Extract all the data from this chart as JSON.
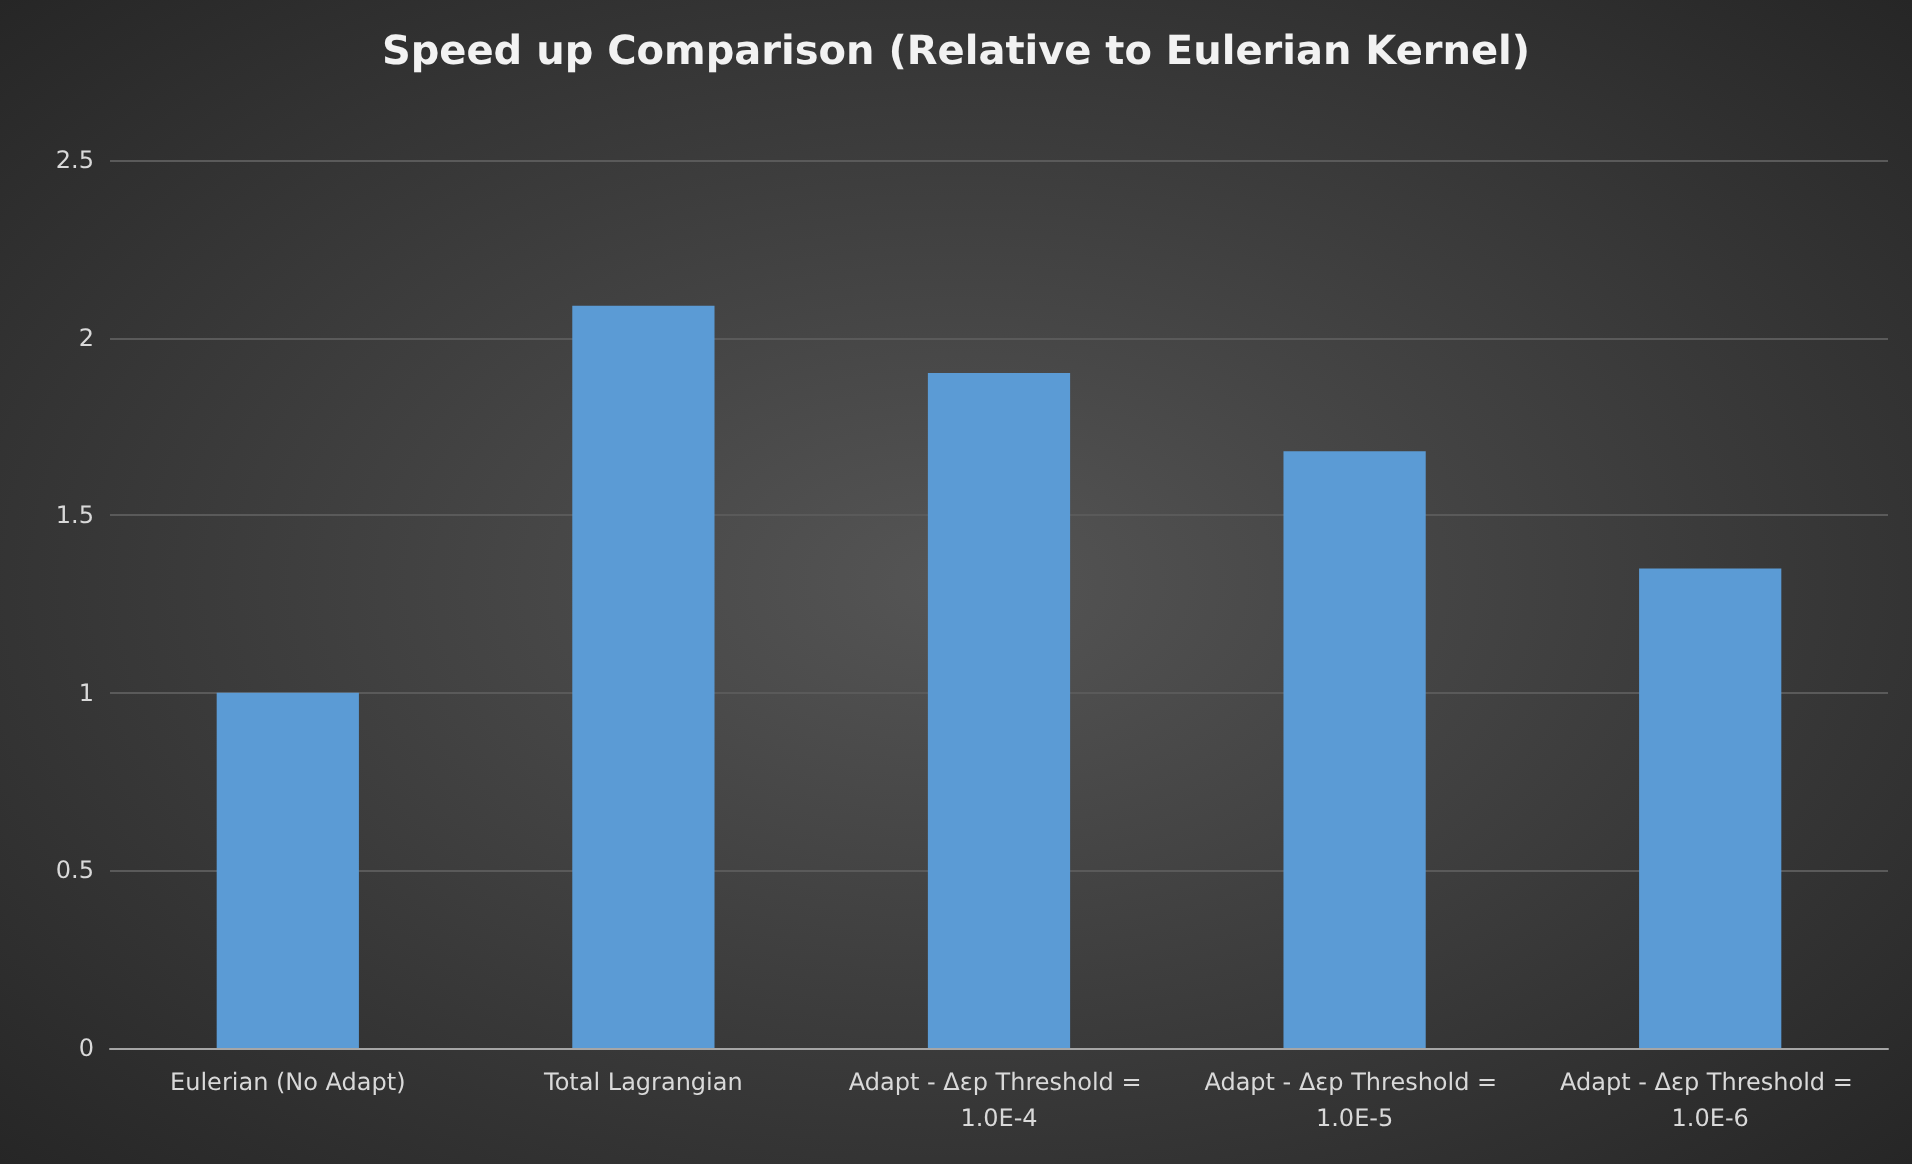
{
  "chart_data": {
    "type": "bar",
    "title": "Speed up Comparison (Relative to Eulerian Kernel)",
    "categories": [
      "Eulerian (No Adapt)",
      "Total Lagrangian",
      "Adapt - Δεp Threshold = 1.0E-4",
      "Adapt - Δεp Threshold = 1.0E-5",
      "Adapt - Δεp Threshold = 1.0E-6"
    ],
    "values": [
      1.0,
      2.09,
      1.9,
      1.68,
      1.35
    ],
    "color": "#5b9bd5",
    "ylim": [
      0,
      2.5
    ],
    "yticks": [
      0,
      0.5,
      1,
      1.5,
      2,
      2.5
    ],
    "grid": "y"
  }
}
